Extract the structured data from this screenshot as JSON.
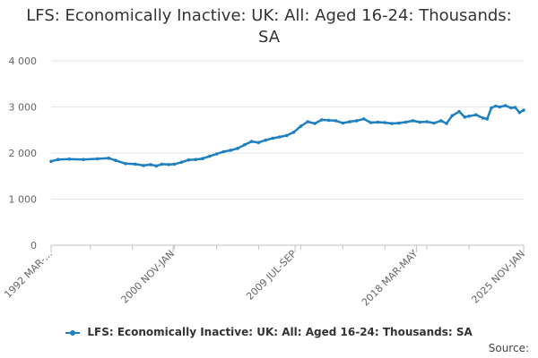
{
  "chart_data": {
    "type": "line",
    "title_line1": "LFS: Economically Inactive: UK: All: Aged 16-24: Thousands:",
    "title_line2": "SA",
    "xlabel": "",
    "ylabel": "",
    "ylim": [
      0,
      4000
    ],
    "yticks": [
      0,
      1000,
      2000,
      3000,
      4000
    ],
    "ytick_labels": [
      "0",
      "1 000",
      "2 000",
      "3 000",
      "4 000"
    ],
    "x_tick_labels": [
      "1992 MAR-...",
      "2000 NOV-JAN",
      "2009 JUL-SEP",
      "2018 MAR-MAY",
      "2025 NOV-JAN"
    ],
    "x_tick_years": [
      1992.2,
      2000.9,
      2009.6,
      2018.25,
      2025.9
    ],
    "xlim": [
      1992.2,
      2025.9
    ],
    "grid": true,
    "legend_position": "bottom",
    "series_color": "#1f80c0",
    "series": [
      {
        "name": "LFS: Economically Inactive: UK: All: Aged 16-24: Thousands: SA",
        "x": [
          1992.2,
          1992.7,
          1993.5,
          1994.5,
          1995.5,
          1996.3,
          1996.8,
          1997.5,
          1998.2,
          1998.8,
          1999.3,
          1999.7,
          2000.1,
          2000.6,
          2001.0,
          2001.5,
          2002.0,
          2002.5,
          2003.0,
          2003.5,
          2004.0,
          2004.5,
          2005.0,
          2005.5,
          2006.0,
          2006.5,
          2007.0,
          2007.5,
          2008.0,
          2008.5,
          2009.0,
          2009.5,
          2010.0,
          2010.5,
          2011.0,
          2011.5,
          2012.0,
          2012.5,
          2013.0,
          2013.5,
          2014.0,
          2014.5,
          2015.0,
          2015.5,
          2016.0,
          2016.5,
          2017.0,
          2017.5,
          2018.0,
          2018.5,
          2019.0,
          2019.5,
          2020.0,
          2020.4,
          2020.8,
          2021.3,
          2021.7,
          2022.0,
          2022.5,
          2023.0,
          2023.3,
          2023.6,
          2023.9,
          2024.2,
          2024.6,
          2025.0,
          2025.3,
          2025.6,
          2025.9
        ],
        "values": [
          1820,
          1860,
          1870,
          1860,
          1875,
          1890,
          1840,
          1770,
          1760,
          1730,
          1750,
          1720,
          1760,
          1750,
          1760,
          1800,
          1850,
          1860,
          1880,
          1930,
          1980,
          2030,
          2060,
          2100,
          2180,
          2250,
          2230,
          2280,
          2320,
          2350,
          2380,
          2450,
          2580,
          2680,
          2640,
          2720,
          2710,
          2700,
          2650,
          2680,
          2700,
          2740,
          2660,
          2670,
          2660,
          2640,
          2650,
          2670,
          2700,
          2670,
          2680,
          2650,
          2700,
          2640,
          2810,
          2900,
          2780,
          2800,
          2830,
          2760,
          2740,
          2980,
          3020,
          3000,
          3030,
          2980,
          2990,
          2880,
          2930
        ]
      }
    ]
  },
  "source_label": "Source:"
}
